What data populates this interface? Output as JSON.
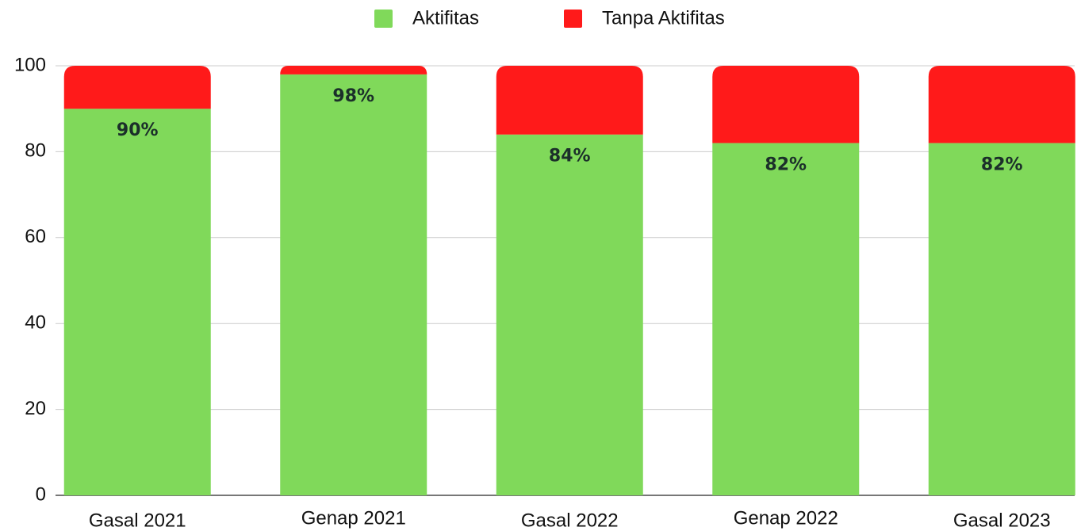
{
  "chart_data": {
    "type": "stacked_bar",
    "categories": [
      "Gasal 2021",
      "Genap 2021",
      "Gasal 2022",
      "Genap 2022",
      "Gasal 2023"
    ],
    "series": [
      {
        "name": "Aktifitas",
        "color": "#80d95a",
        "values": [
          90,
          98,
          84,
          82,
          82
        ],
        "value_labels": [
          "90%",
          "98%",
          "84%",
          "82%",
          "82%"
        ]
      },
      {
        "name": "Tanpa Aktifitas",
        "color": "#ff1a1a",
        "values": [
          10,
          2,
          16,
          18,
          18
        ]
      }
    ],
    "ylim": [
      0,
      100
    ],
    "yticks": [
      0,
      20,
      40,
      60,
      80,
      100
    ],
    "grid": true,
    "legend": "top"
  }
}
